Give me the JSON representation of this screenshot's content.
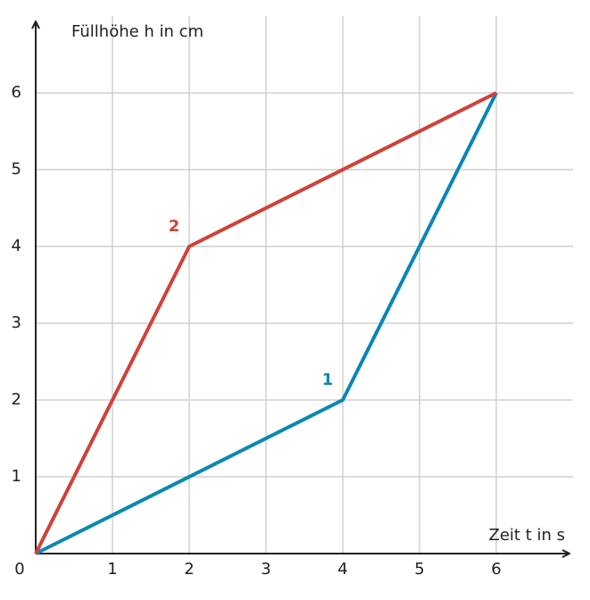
{
  "chart_data": {
    "type": "line",
    "x_label": "Zeit t in s",
    "y_label": "Füllhöhe h in cm",
    "series": [
      {
        "name": "1",
        "color": "#0a86b7",
        "x": [
          0,
          4,
          6
        ],
        "values": [
          0,
          2,
          6
        ]
      },
      {
        "name": "2",
        "color": "#d43f3a",
        "x": [
          0,
          2,
          6
        ],
        "values": [
          0,
          4,
          6
        ]
      }
    ],
    "xlim": [
      0,
      7
    ],
    "ylim": [
      0,
      7
    ],
    "xticks": [
      0,
      1,
      2,
      3,
      4,
      5,
      6
    ],
    "yticks": [
      1,
      2,
      3,
      4,
      5,
      6
    ],
    "grid": true
  }
}
